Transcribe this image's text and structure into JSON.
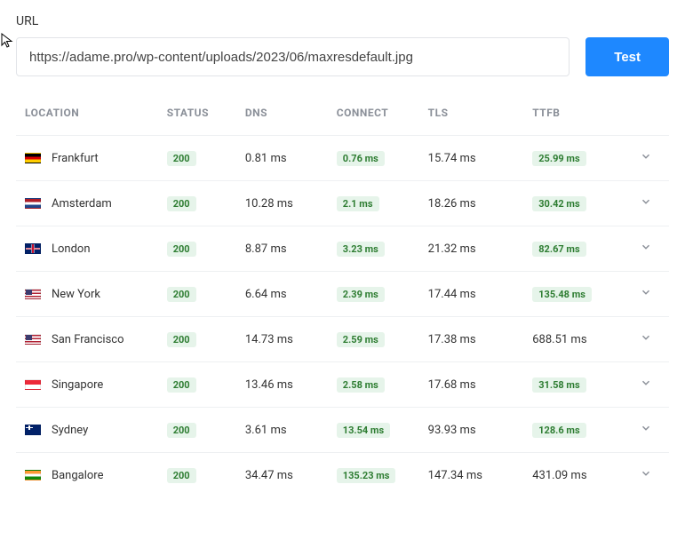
{
  "url_label": "URL",
  "url_value": "https://adame.pro/wp-content/uploads/2023/06/maxresdefault.jpg",
  "test_label": "Test",
  "columns": {
    "location": "LOCATION",
    "status": "STATUS",
    "dns": "DNS",
    "connect": "CONNECT",
    "tls": "TLS",
    "ttfb": "TTFB"
  },
  "rows": [
    {
      "flag": "de",
      "location": "Frankfurt",
      "status": "200",
      "dns": "0.81 ms",
      "connect": "0.76 ms",
      "connect_badge": true,
      "tls": "15.74 ms",
      "ttfb": "25.99 ms",
      "ttfb_badge": true
    },
    {
      "flag": "nl",
      "location": "Amsterdam",
      "status": "200",
      "dns": "10.28 ms",
      "connect": "2.1 ms",
      "connect_badge": true,
      "tls": "18.26 ms",
      "ttfb": "30.42 ms",
      "ttfb_badge": true
    },
    {
      "flag": "gb",
      "location": "London",
      "status": "200",
      "dns": "8.87 ms",
      "connect": "3.23 ms",
      "connect_badge": true,
      "tls": "21.32 ms",
      "ttfb": "82.67 ms",
      "ttfb_badge": true
    },
    {
      "flag": "us",
      "location": "New York",
      "status": "200",
      "dns": "6.64 ms",
      "connect": "2.39 ms",
      "connect_badge": true,
      "tls": "17.44 ms",
      "ttfb": "135.48 ms",
      "ttfb_badge": true
    },
    {
      "flag": "us",
      "location": "San Francisco",
      "status": "200",
      "dns": "14.73 ms",
      "connect": "2.59 ms",
      "connect_badge": true,
      "tls": "17.38 ms",
      "ttfb": "688.51 ms",
      "ttfb_badge": false
    },
    {
      "flag": "sg",
      "location": "Singapore",
      "status": "200",
      "dns": "13.46 ms",
      "connect": "2.58 ms",
      "connect_badge": true,
      "tls": "17.68 ms",
      "ttfb": "31.58 ms",
      "ttfb_badge": true
    },
    {
      "flag": "au",
      "location": "Sydney",
      "status": "200",
      "dns": "3.61 ms",
      "connect": "13.54 ms",
      "connect_badge": true,
      "tls": "93.93 ms",
      "ttfb": "128.6 ms",
      "ttfb_badge": true
    },
    {
      "flag": "in",
      "location": "Bangalore",
      "status": "200",
      "dns": "34.47 ms",
      "connect": "135.23 ms",
      "connect_badge": true,
      "tls": "147.34 ms",
      "ttfb": "431.09 ms",
      "ttfb_badge": false
    }
  ],
  "colors": {
    "badge_bg": "#e6f4ea",
    "badge_text": "#2e7d32",
    "button_bg": "#1e88ff",
    "border": "#eef0f2",
    "header_text": "#8a8f98"
  }
}
